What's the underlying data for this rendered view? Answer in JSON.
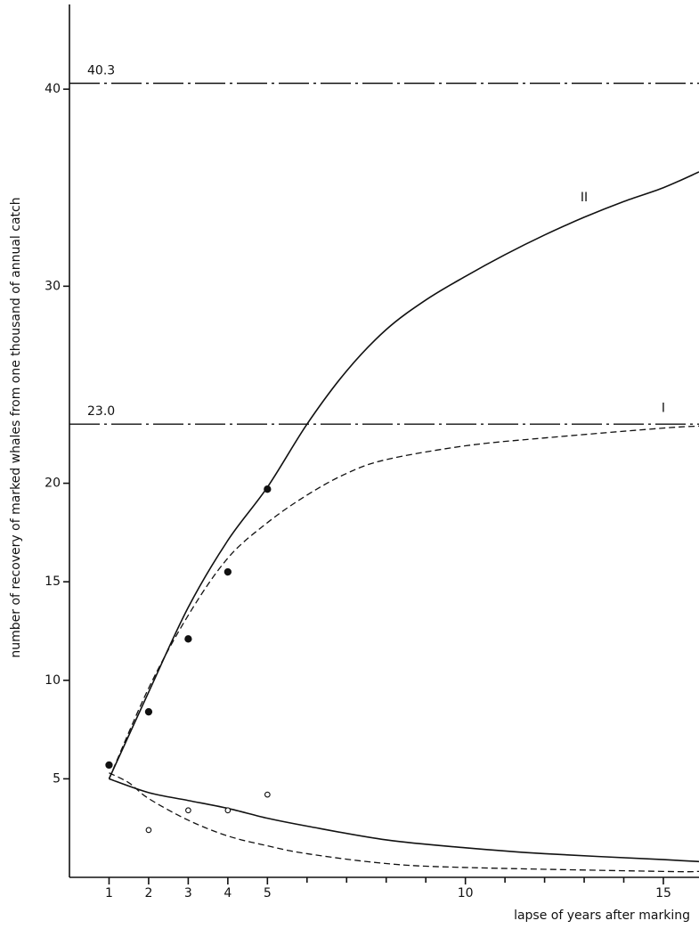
{
  "chart_data": {
    "type": "line",
    "y_label": "number of recovery of marked whales from one thousand of annual catch",
    "x_label": "lapse of years after marking",
    "xlim": [
      0,
      15.9
    ],
    "ylim": [
      0,
      44.3
    ],
    "xticks": [
      1,
      2,
      3,
      4,
      5,
      10,
      15
    ],
    "xminorticks": [
      6,
      7,
      8,
      9,
      11,
      12,
      13,
      14
    ],
    "yticks": [
      5,
      10,
      15,
      20,
      30,
      40
    ],
    "reference_lines": [
      {
        "value": 40.3,
        "label": "40.3"
      },
      {
        "value": 23.0,
        "label": "23.0"
      }
    ],
    "series": [
      {
        "name": "II",
        "type": "line",
        "style": "solid",
        "color": "#111",
        "x": [
          1,
          2,
          3,
          4,
          5,
          6,
          7,
          8,
          9,
          10,
          11,
          12,
          13,
          14,
          15,
          15.9
        ],
        "values": [
          5,
          9.4,
          13.7,
          17.1,
          19.8,
          23.0,
          25.7,
          27.8,
          29.3,
          30.5,
          31.6,
          32.6,
          33.5,
          34.3,
          35.0,
          35.8
        ]
      },
      {
        "name": "I",
        "type": "line",
        "style": "dashed",
        "color": "#111",
        "x": [
          1,
          2,
          3,
          4,
          5,
          6,
          7,
          8,
          10,
          12,
          15,
          15.9
        ],
        "values": [
          5,
          9.6,
          13.3,
          16.2,
          18.0,
          19.4,
          20.5,
          21.2,
          21.9,
          22.3,
          22.8,
          22.9
        ]
      },
      {
        "type": "line",
        "style": "solid",
        "color": "#111",
        "x": [
          1,
          2,
          3,
          4,
          5,
          6,
          8,
          10,
          12,
          15,
          15.9
        ],
        "values": [
          5,
          4.3,
          3.9,
          3.5,
          3.0,
          2.6,
          1.9,
          1.5,
          1.2,
          0.9,
          0.8
        ]
      },
      {
        "type": "line",
        "style": "dashed",
        "color": "#111",
        "x": [
          1,
          1.5,
          2,
          3,
          4,
          5,
          6,
          8,
          10,
          15,
          15.9
        ],
        "values": [
          5.3,
          4.8,
          4.0,
          2.9,
          2.1,
          1.6,
          1.2,
          0.7,
          0.5,
          0.3,
          0.3
        ]
      },
      {
        "type": "scatter",
        "marker": "filled",
        "color": "#111",
        "x": [
          1,
          2,
          3,
          4,
          5
        ],
        "values": [
          5.7,
          8.4,
          12.1,
          15.5,
          19.7
        ]
      },
      {
        "type": "scatter",
        "marker": "open",
        "color": "#111",
        "x": [
          2,
          3,
          4,
          5
        ],
        "values": [
          2.4,
          3.4,
          3.4,
          4.2
        ]
      }
    ]
  }
}
